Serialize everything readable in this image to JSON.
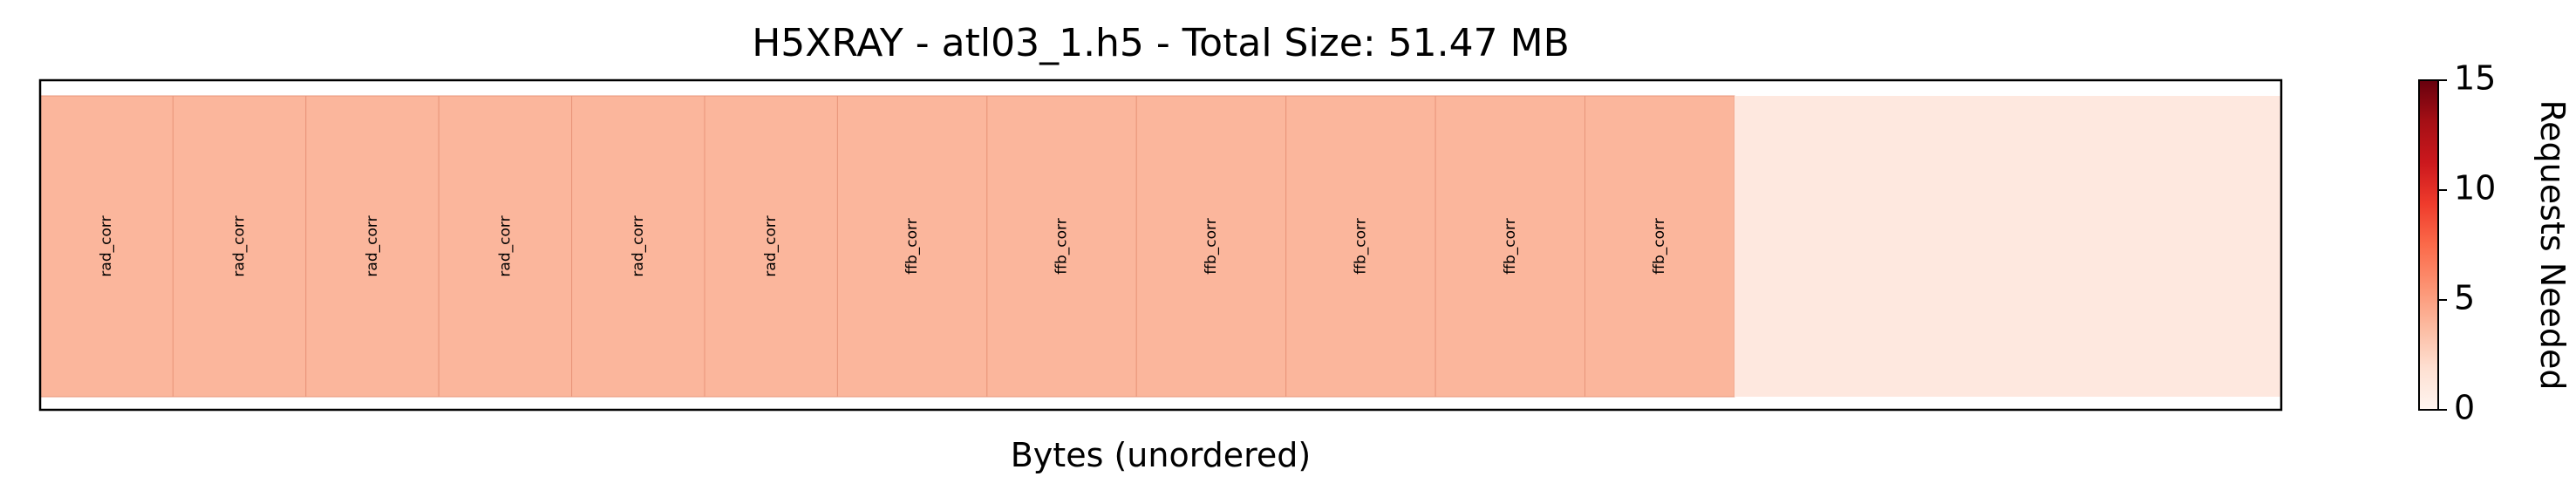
{
  "chart_data": {
    "type": "heatmap",
    "title": "H5XRAY - atl03_1.h5 - Total Size: 51.47 MB",
    "xlabel": "Bytes (unordered)",
    "colorbar": {
      "label": "Requests Needed",
      "range": [
        0,
        15
      ],
      "ticks": [
        "0",
        "5",
        "10",
        "15"
      ],
      "colormap": "Reds"
    },
    "total_fraction": 1.0,
    "blocks": [
      {
        "label": "rad_corr",
        "share": 0.0593,
        "requests": 3
      },
      {
        "label": "rad_corr",
        "share": 0.0593,
        "requests": 3
      },
      {
        "label": "rad_corr",
        "share": 0.0593,
        "requests": 3
      },
      {
        "label": "rad_corr",
        "share": 0.0593,
        "requests": 3
      },
      {
        "label": "rad_corr",
        "share": 0.0593,
        "requests": 3
      },
      {
        "label": "rad_corr",
        "share": 0.0593,
        "requests": 3
      },
      {
        "label": "ffb_corr",
        "share": 0.0667,
        "requests": 3
      },
      {
        "label": "ffb_corr",
        "share": 0.0667,
        "requests": 3
      },
      {
        "label": "ffb_corr",
        "share": 0.0667,
        "requests": 3
      },
      {
        "label": "ffb_corr",
        "share": 0.0667,
        "requests": 3
      },
      {
        "label": "ffb_corr",
        "share": 0.0667,
        "requests": 3
      },
      {
        "label": "ffb_corr",
        "share": 0.0667,
        "requests": 3
      }
    ],
    "remainder": {
      "share": 0.2442,
      "requests": 0.6
    },
    "colors": {
      "block_fill": "#fbb69c",
      "block_border": "#e8957a",
      "remainder_fill": "#fee8df"
    }
  }
}
